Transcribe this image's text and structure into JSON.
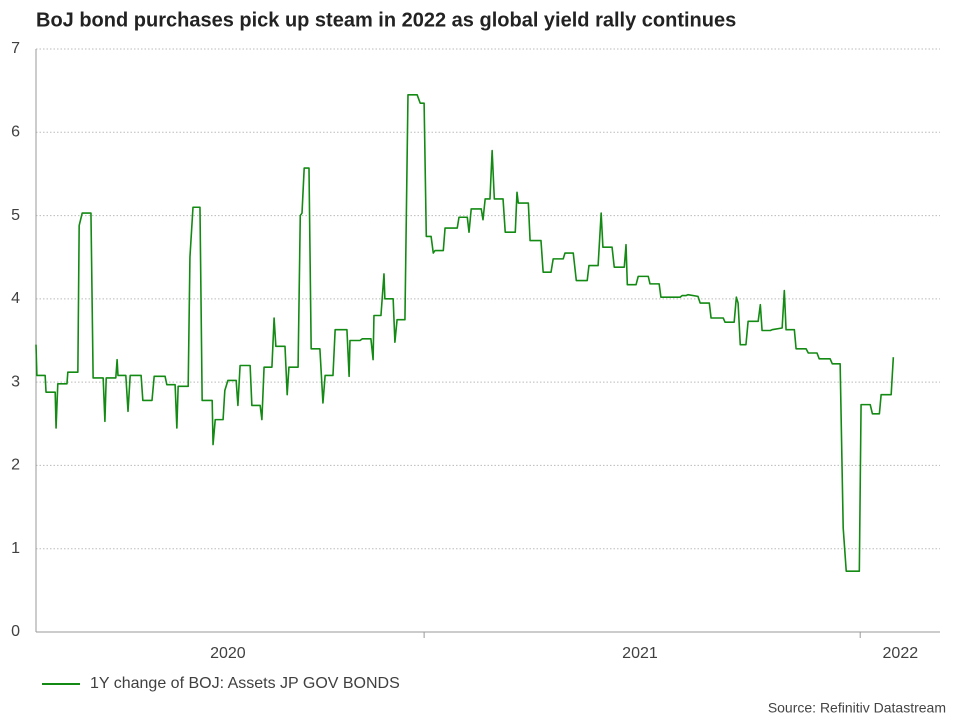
{
  "chart_data": {
    "type": "line",
    "title": "BoJ bond purchases pick up steam in 2022 as global yield rally continues",
    "source": "Source: Refinitiv Datastream",
    "xlim": [
      2020.11,
      2022.183
    ],
    "xticks": [
      {
        "value": 2020.55,
        "label": "2020"
      },
      {
        "value": 2021.495,
        "label": "2021"
      },
      {
        "value": 2022.092,
        "label": "2022"
      }
    ],
    "year_boundaries": [
      2021,
      2022
    ],
    "ylim": [
      0,
      7
    ],
    "yticks": [
      0,
      1,
      2,
      3,
      4,
      5,
      6,
      7
    ],
    "grid": true,
    "legend": "bottom-left",
    "x": [
      2020.11,
      2020.112,
      2020.131,
      2020.133,
      2020.154,
      2020.156,
      2020.16,
      2020.181,
      2020.183,
      2020.206,
      2020.209,
      2020.216,
      2020.236,
      2020.241,
      2020.264,
      2020.268,
      2020.271,
      2020.293,
      2020.296,
      2020.298,
      2020.316,
      2020.321,
      2020.326,
      2020.351,
      2020.355,
      2020.376,
      2020.381,
      2020.406,
      2020.41,
      2020.429,
      2020.433,
      2020.436,
      2020.459,
      2020.463,
      2020.47,
      2020.486,
      2020.491,
      2020.514,
      2020.516,
      2020.521,
      2020.539,
      2020.543,
      2020.55,
      2020.569,
      2020.573,
      2020.578,
      2020.601,
      2020.605,
      2020.624,
      2020.628,
      2020.633,
      2020.651,
      2020.656,
      2020.66,
      2020.681,
      2020.686,
      2020.69,
      2020.711,
      2020.716,
      2020.72,
      2020.725,
      2020.736,
      2020.741,
      2020.761,
      2020.768,
      2020.773,
      2020.791,
      2020.796,
      2020.823,
      2020.828,
      2020.83,
      2020.853,
      2020.858,
      2020.878,
      2020.883,
      2020.885,
      2020.901,
      2020.908,
      2020.91,
      2020.929,
      2020.933,
      2020.938,
      2020.956,
      2020.963,
      2020.984,
      2020.991,
      2021.0,
      2021.005,
      2021.016,
      2021.021,
      2021.025,
      2021.044,
      2021.048,
      2021.076,
      2021.08,
      2021.099,
      2021.103,
      2021.108,
      2021.131,
      2021.135,
      2021.14,
      2021.151,
      2021.156,
      2021.161,
      2021.181,
      2021.186,
      2021.209,
      2021.213,
      2021.216,
      2021.239,
      2021.243,
      2021.268,
      2021.273,
      2021.291,
      2021.296,
      2021.319,
      2021.323,
      2021.342,
      2021.349,
      2021.374,
      2021.378,
      2021.399,
      2021.406,
      2021.41,
      2021.431,
      2021.436,
      2021.459,
      2021.463,
      2021.466,
      2021.486,
      2021.491,
      2021.514,
      2021.518,
      2021.539,
      2021.543,
      2021.587,
      2021.592,
      2021.601,
      2021.605,
      2021.628,
      2021.633,
      2021.654,
      2021.658,
      2021.686,
      2021.69,
      2021.711,
      2021.716,
      2021.72,
      2021.725,
      2021.738,
      2021.743,
      2021.766,
      2021.771,
      2021.775,
      2021.794,
      2021.798,
      2021.821,
      2021.826,
      2021.83,
      2021.849,
      2021.853,
      2021.876,
      2021.881,
      2021.901,
      2021.906,
      2021.931,
      2021.936,
      2021.954,
      2021.961,
      2021.968,
      2021.998,
      2022.002,
      2022.023,
      2022.028,
      2022.044,
      2022.048,
      2022.071,
      2022.076
    ],
    "series": [
      {
        "name": "1Y change of BOJ: Assets JP GOV BONDS",
        "color": "#138a13",
        "values": [
          3.45,
          3.08,
          3.08,
          2.88,
          2.88,
          2.45,
          2.98,
          2.98,
          3.12,
          3.12,
          4.88,
          5.03,
          5.03,
          3.05,
          3.05,
          2.53,
          3.05,
          3.05,
          3.27,
          3.08,
          3.08,
          2.65,
          3.08,
          3.08,
          2.78,
          2.78,
          3.07,
          3.07,
          2.97,
          2.97,
          2.45,
          2.95,
          2.95,
          4.5,
          5.1,
          5.1,
          2.78,
          2.78,
          2.25,
          2.55,
          2.55,
          2.9,
          3.02,
          3.02,
          2.72,
          3.2,
          3.2,
          2.72,
          2.72,
          2.55,
          3.18,
          3.18,
          3.77,
          3.43,
          3.43,
          2.85,
          3.18,
          3.18,
          5.0,
          5.03,
          5.57,
          5.57,
          3.4,
          3.4,
          2.75,
          3.08,
          3.08,
          3.63,
          3.63,
          3.07,
          3.5,
          3.5,
          3.52,
          3.52,
          3.27,
          3.8,
          3.8,
          4.3,
          4.0,
          4.0,
          3.48,
          3.75,
          3.75,
          6.45,
          6.45,
          6.35,
          6.35,
          4.75,
          4.75,
          4.55,
          4.58,
          4.58,
          4.85,
          4.85,
          4.98,
          4.98,
          4.8,
          5.08,
          5.08,
          4.95,
          5.2,
          5.2,
          5.78,
          5.2,
          5.2,
          4.8,
          4.8,
          5.28,
          5.15,
          5.15,
          4.7,
          4.7,
          4.32,
          4.32,
          4.48,
          4.48,
          4.55,
          4.55,
          4.22,
          4.22,
          4.4,
          4.4,
          5.03,
          4.62,
          4.62,
          4.38,
          4.38,
          4.65,
          4.17,
          4.17,
          4.27,
          4.27,
          4.18,
          4.18,
          4.02,
          4.02,
          4.04,
          4.04,
          4.05,
          4.03,
          3.95,
          3.95,
          3.77,
          3.77,
          3.72,
          3.72,
          4.02,
          3.95,
          3.45,
          3.45,
          3.73,
          3.73,
          3.93,
          3.62,
          3.62,
          3.63,
          3.65,
          4.1,
          3.63,
          3.63,
          3.4,
          3.4,
          3.35,
          3.35,
          3.28,
          3.28,
          3.22,
          3.22,
          1.25,
          0.73,
          0.73,
          2.73,
          2.73,
          2.62,
          2.62,
          2.85,
          2.85,
          3.3
        ]
      }
    ]
  }
}
